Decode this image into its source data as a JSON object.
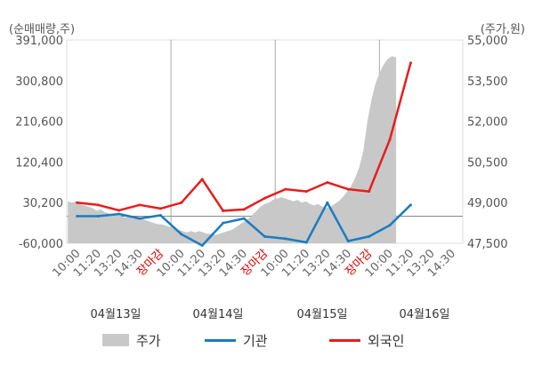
{
  "chart_data": {
    "type": "line",
    "left_axis_unit": "(순매매량,주)",
    "right_axis_unit": "(주가,원)",
    "left_ticks": [
      "391,000",
      "300,800",
      "210,600",
      "120,400",
      "30,200",
      "-60,000"
    ],
    "right_ticks": [
      "55,000",
      "53,500",
      "52,000",
      "50,500",
      "49,000",
      "47,500"
    ],
    "ylim_left": [
      -60000,
      391000
    ],
    "ylim_right": [
      47500,
      55000
    ],
    "x_tick_labels": [
      "10:00",
      "11:20",
      "13:20",
      "14:30",
      "장마감",
      "10:00",
      "11:20",
      "13:20",
      "14:30",
      "장마감",
      "10:00",
      "11:20",
      "13:20",
      "14:30",
      "장마감",
      "10:00",
      "11:20",
      "13:20",
      "14:30"
    ],
    "day_labels": [
      "04월13일",
      "04월14일",
      "04월15일",
      "04월16일"
    ],
    "legend": [
      "주가",
      "기관",
      "외국인"
    ],
    "colors": {
      "price": "#c8c8c8",
      "institution": "#1a7cc1",
      "foreign": "#e61e1e",
      "grid": "#dddddd",
      "baseline": "#888888"
    },
    "x_points": [
      0,
      1,
      2,
      3,
      4,
      5,
      6,
      7,
      8,
      9,
      10,
      11,
      12,
      13,
      14,
      15,
      16,
      17
    ],
    "series": [
      {
        "name": "기관",
        "axis": "left",
        "values": [
          0,
          0,
          5000,
          -5000,
          2000,
          -40000,
          -65000,
          -15000,
          -5000,
          -45000,
          -50000,
          -58000,
          30000,
          -55000,
          -45000,
          -20000,
          25000,
          null
        ]
      },
      {
        "name": "외국인",
        "axis": "left",
        "values": [
          30000,
          25000,
          13000,
          25000,
          17000,
          30000,
          82000,
          12000,
          15000,
          40000,
          60000,
          55000,
          75000,
          60000,
          55000,
          170000,
          340000,
          null
        ]
      }
    ],
    "price": {
      "axis": "right",
      "x_range": [
        0,
        15.3
      ],
      "values": [
        49050,
        49000,
        49050,
        48950,
        48900,
        48850,
        48800,
        48700,
        48750,
        48650,
        48600,
        48550,
        48550,
        48500,
        48450,
        48500,
        48400,
        48450,
        48400,
        48350,
        48300,
        48250,
        48200,
        48200,
        48150,
        48100,
        48050,
        48000,
        47950,
        47900,
        47950,
        47900,
        47950,
        47900,
        47850,
        47850,
        47800,
        47850,
        47900,
        47950,
        48000,
        48100,
        48200,
        48300,
        48400,
        48550,
        48700,
        48850,
        48950,
        49000,
        49100,
        49150,
        49200,
        49150,
        49100,
        49050,
        49100,
        49000,
        49050,
        48950,
        48900,
        48950,
        48850,
        48800,
        48850,
        48950,
        49050,
        49200,
        49400,
        49600,
        49900,
        50300,
        50900,
        52000,
        52800,
        53400,
        53800,
        54100,
        54300,
        54400,
        54350
      ]
    }
  }
}
